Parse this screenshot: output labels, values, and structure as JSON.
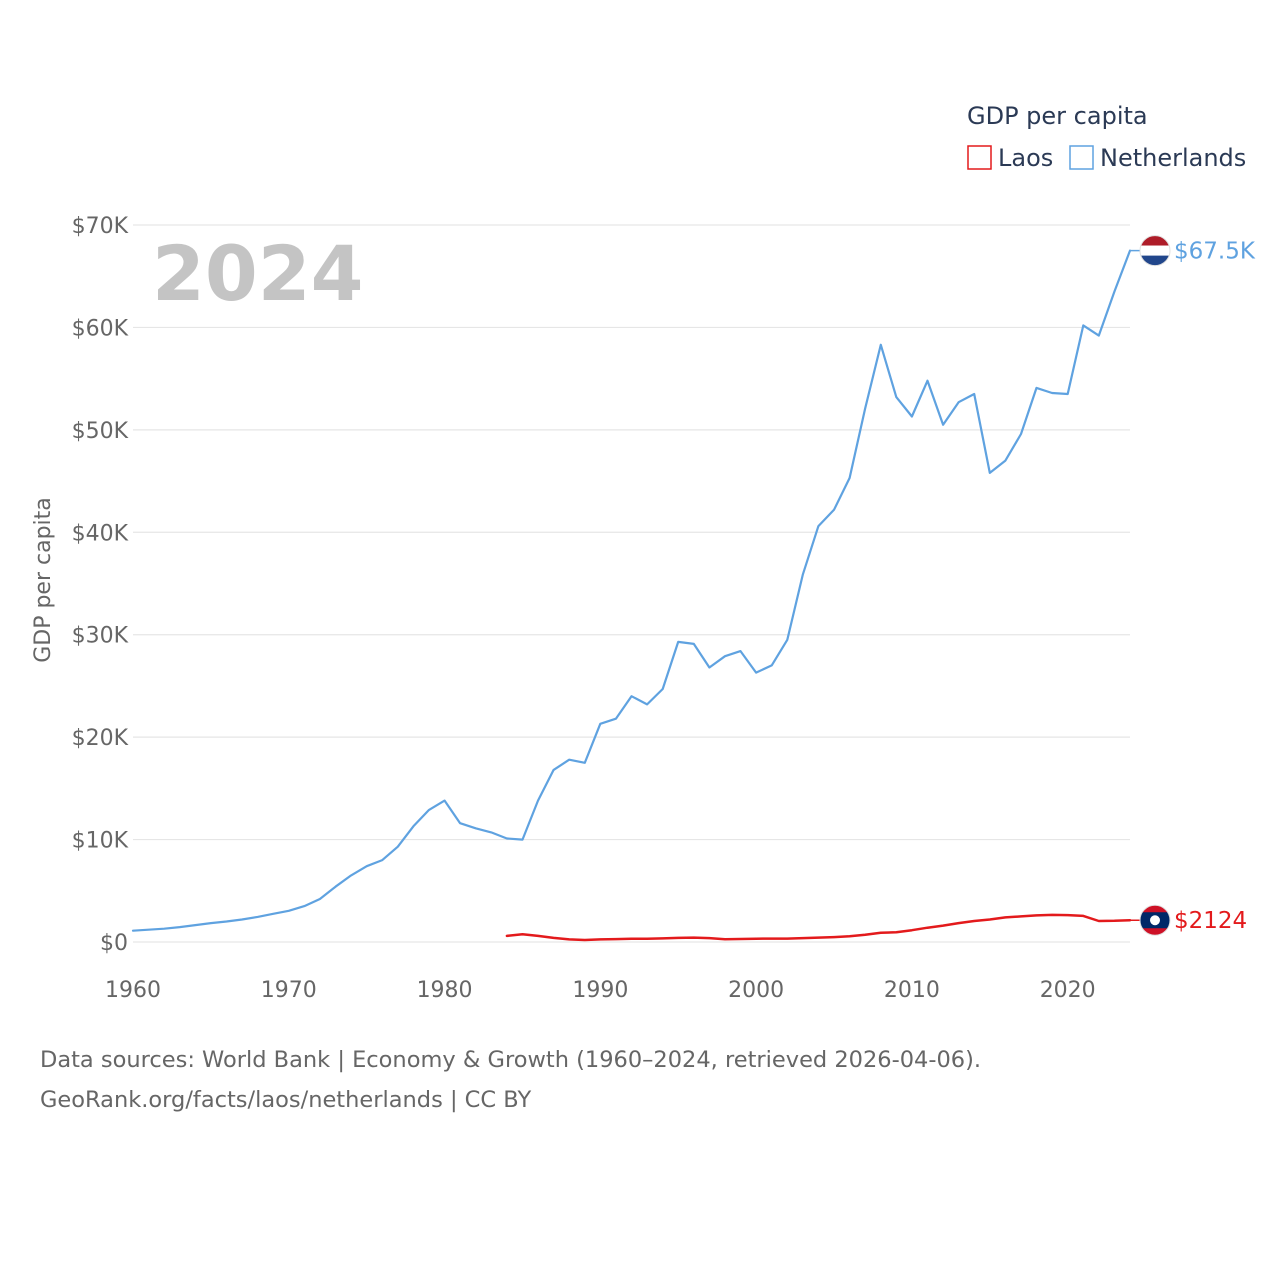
{
  "chart_data": {
    "type": "line",
    "title": "GDP per capita",
    "ylabel": "GDP per capita",
    "xlabel": "",
    "xlim": [
      1960,
      2024
    ],
    "ylim": [
      0,
      70000
    ],
    "x_ticks": [
      1960,
      1970,
      1980,
      1990,
      2000,
      2010,
      2020
    ],
    "y_ticks": [
      0,
      10000,
      20000,
      30000,
      40000,
      50000,
      60000,
      70000
    ],
    "y_tick_labels": [
      "$0",
      "$10K",
      "$20K",
      "$30K",
      "$40K",
      "$50K",
      "$60K",
      "$70K"
    ],
    "grid": true,
    "legend_position": "top-right",
    "current_year": "2024",
    "series": [
      {
        "name": "Laos",
        "color": "#e31a1c",
        "end_label": "$2124",
        "flag": "laos",
        "points": [
          [
            1984,
            600
          ],
          [
            1985,
            750
          ],
          [
            1986,
            600
          ],
          [
            1987,
            400
          ],
          [
            1988,
            250
          ],
          [
            1989,
            200
          ],
          [
            1990,
            250
          ],
          [
            1991,
            280
          ],
          [
            1992,
            310
          ],
          [
            1993,
            320
          ],
          [
            1994,
            350
          ],
          [
            1995,
            400
          ],
          [
            1996,
            430
          ],
          [
            1997,
            380
          ],
          [
            1998,
            260
          ],
          [
            1999,
            290
          ],
          [
            2000,
            320
          ],
          [
            2001,
            330
          ],
          [
            2002,
            330
          ],
          [
            2003,
            380
          ],
          [
            2004,
            430
          ],
          [
            2005,
            480
          ],
          [
            2006,
            560
          ],
          [
            2007,
            700
          ],
          [
            2008,
            900
          ],
          [
            2009,
            950
          ],
          [
            2010,
            1150
          ],
          [
            2011,
            1400
          ],
          [
            2012,
            1600
          ],
          [
            2013,
            1850
          ],
          [
            2014,
            2050
          ],
          [
            2015,
            2200
          ],
          [
            2016,
            2400
          ],
          [
            2017,
            2500
          ],
          [
            2018,
            2600
          ],
          [
            2019,
            2650
          ],
          [
            2020,
            2630
          ],
          [
            2021,
            2550
          ],
          [
            2022,
            2050
          ],
          [
            2023,
            2070
          ],
          [
            2024,
            2124
          ]
        ]
      },
      {
        "name": "Netherlands",
        "color": "#5fa2e0",
        "end_label": "$67.5K",
        "flag": "netherlands",
        "points": [
          [
            1960,
            1100
          ],
          [
            1961,
            1200
          ],
          [
            1962,
            1300
          ],
          [
            1963,
            1450
          ],
          [
            1964,
            1650
          ],
          [
            1965,
            1850
          ],
          [
            1966,
            2000
          ],
          [
            1967,
            2200
          ],
          [
            1968,
            2450
          ],
          [
            1969,
            2750
          ],
          [
            1970,
            3050
          ],
          [
            1971,
            3500
          ],
          [
            1972,
            4200
          ],
          [
            1973,
            5400
          ],
          [
            1974,
            6500
          ],
          [
            1975,
            7400
          ],
          [
            1976,
            8000
          ],
          [
            1977,
            9300
          ],
          [
            1978,
            11300
          ],
          [
            1979,
            12900
          ],
          [
            1980,
            13800
          ],
          [
            1981,
            11600
          ],
          [
            1982,
            11100
          ],
          [
            1983,
            10700
          ],
          [
            1984,
            10100
          ],
          [
            1985,
            10000
          ],
          [
            1986,
            13800
          ],
          [
            1987,
            16800
          ],
          [
            1988,
            17800
          ],
          [
            1989,
            17500
          ],
          [
            1990,
            21300
          ],
          [
            1991,
            21800
          ],
          [
            1992,
            24000
          ],
          [
            1993,
            23200
          ],
          [
            1994,
            24700
          ],
          [
            1995,
            29300
          ],
          [
            1996,
            29100
          ],
          [
            1997,
            26800
          ],
          [
            1998,
            27900
          ],
          [
            1999,
            28400
          ],
          [
            2000,
            26300
          ],
          [
            2001,
            27000
          ],
          [
            2002,
            29500
          ],
          [
            2003,
            35900
          ],
          [
            2004,
            40600
          ],
          [
            2005,
            42200
          ],
          [
            2006,
            45300
          ],
          [
            2007,
            52100
          ],
          [
            2008,
            58300
          ],
          [
            2009,
            53200
          ],
          [
            2010,
            51300
          ],
          [
            2011,
            54800
          ],
          [
            2012,
            50500
          ],
          [
            2013,
            52700
          ],
          [
            2014,
            53500
          ],
          [
            2015,
            45800
          ],
          [
            2016,
            47000
          ],
          [
            2017,
            49600
          ],
          [
            2018,
            54100
          ],
          [
            2019,
            53600
          ],
          [
            2020,
            53500
          ],
          [
            2021,
            60200
          ],
          [
            2022,
            59200
          ],
          [
            2023,
            63500
          ],
          [
            2024,
            67500
          ]
        ]
      }
    ]
  },
  "footer": {
    "line1": "Data sources: World Bank | Economy & Growth (1960–2024, retrieved 2026-04-06).",
    "line2": "GeoRank.org/facts/laos/netherlands | CC BY"
  }
}
